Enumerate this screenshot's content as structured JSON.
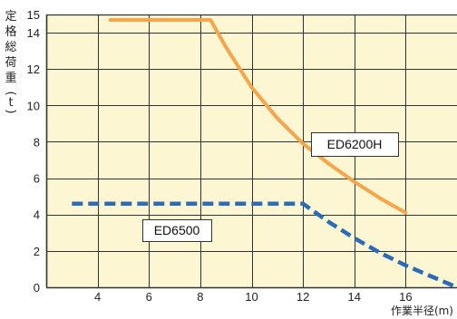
{
  "chart_data": {
    "type": "line",
    "ylabel": "定格総荷重(t)",
    "xlabel": "作業半径(m)",
    "xlim": [
      2,
      18
    ],
    "ylim": [
      0,
      15
    ],
    "x_ticks": [
      4,
      6,
      8,
      10,
      12,
      14,
      16
    ],
    "y_ticks": [
      0,
      2,
      4,
      6,
      8,
      10,
      12,
      14,
      15
    ],
    "grid": true,
    "background": "#fdf6d2",
    "grid_color": "#333333",
    "series": [
      {
        "name": "ED6200H",
        "color": "#f7a54a",
        "style": "solid",
        "points": [
          [
            4.5,
            14.7
          ],
          [
            8.4,
            14.7
          ],
          [
            9,
            13.2
          ],
          [
            10,
            11.0
          ],
          [
            11,
            9.3
          ],
          [
            12,
            7.9
          ],
          [
            13,
            6.8
          ],
          [
            14,
            5.8
          ],
          [
            15,
            4.9
          ],
          [
            16,
            4.1
          ]
        ]
      },
      {
        "name": "ED6500",
        "color": "#2b6cb8",
        "style": "dashed",
        "points": [
          [
            3,
            4.6
          ],
          [
            12,
            4.6
          ],
          [
            13,
            3.6
          ],
          [
            14,
            2.7
          ],
          [
            15,
            1.9
          ],
          [
            16,
            1.2
          ],
          [
            17,
            0.6
          ],
          [
            18,
            0
          ]
        ]
      }
    ]
  }
}
